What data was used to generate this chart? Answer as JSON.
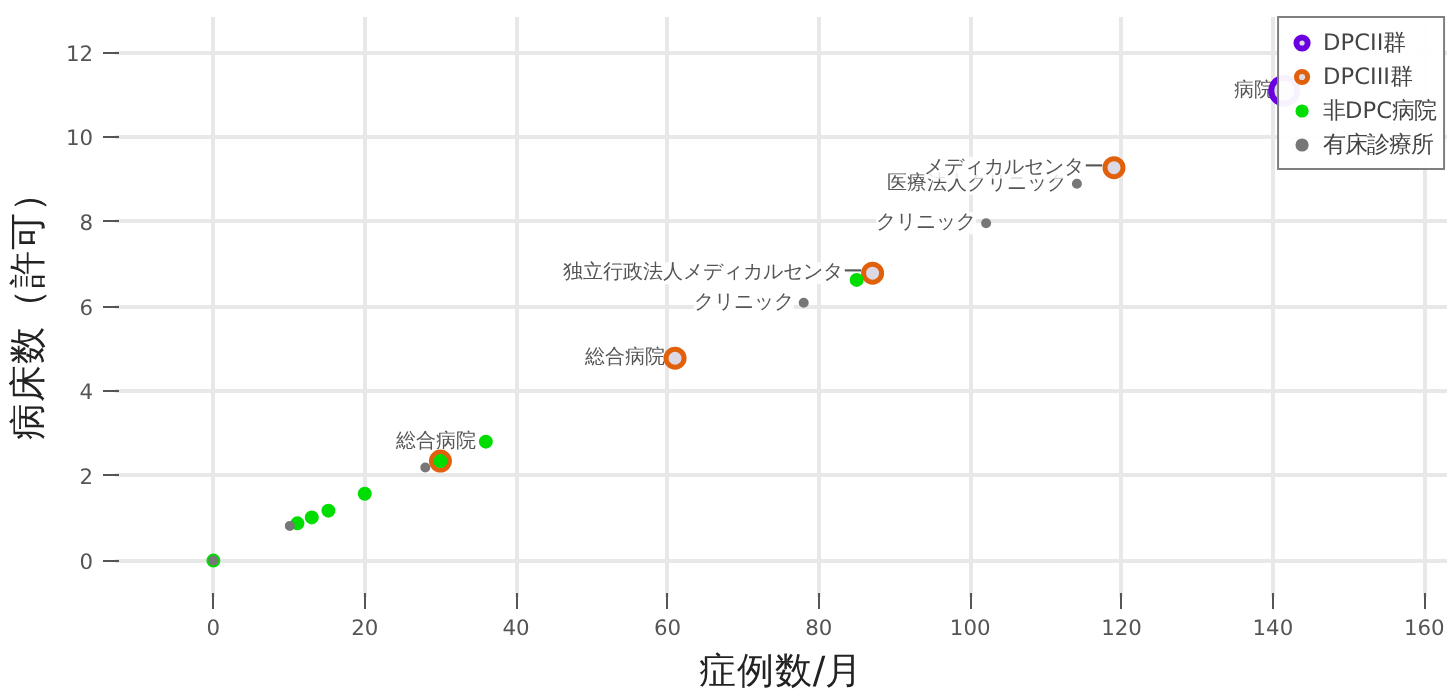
{
  "chart_data": {
    "type": "scatter",
    "xlabel": "症例数/月",
    "ylabel": "病床数（許可）",
    "xlim": [
      -13,
      163
    ],
    "ylim": [
      -0.86,
      12.84
    ],
    "xticks": [
      0,
      20,
      40,
      60,
      80,
      100,
      120,
      140,
      160
    ],
    "yticks": [
      0,
      2,
      4,
      6,
      8,
      10,
      12
    ],
    "grid": true,
    "legend": "top right",
    "marker": "circle",
    "series": [
      {
        "name": "DPCII群",
        "color": "#6a00e0",
        "x": [
          141.5
        ],
        "values": [
          11.1
        ]
      },
      {
        "name": "DPCIII群",
        "color": "#e0600c",
        "x": [
          30.0,
          61.0,
          87.1,
          119.0
        ],
        "values": [
          2.35,
          4.78,
          6.79,
          9.28
        ]
      },
      {
        "name": "非DPC病院",
        "color": "#00dd00",
        "x": [
          0,
          11.1,
          13.0,
          15.2,
          20.0,
          30.0,
          36.0,
          85.0
        ],
        "values": [
          0,
          0.88,
          1.02,
          1.18,
          1.58,
          2.35,
          2.81,
          6.63
        ]
      },
      {
        "name": "有床診療所",
        "color": "#777777",
        "x": [
          0,
          10.1,
          28.0,
          78.0,
          102.1,
          114.1
        ],
        "values": [
          0,
          0.82,
          2.2,
          6.09,
          7.97,
          8.9
        ]
      }
    ],
    "annotations": [
      {
        "text": "総合病院",
        "x": 36.0,
        "y": 2.81
      },
      {
        "text": "総合病院",
        "x": 61.0,
        "y": 4.78
      },
      {
        "text": "クリニック",
        "x": 78.0,
        "y": 6.09
      },
      {
        "text": "独立行政法人メディカルセンター",
        "x": 87.1,
        "y": 6.79
      },
      {
        "text": "クリニック",
        "x": 102.1,
        "y": 7.97
      },
      {
        "text": "医療法人クリニック",
        "x": 114.1,
        "y": 8.9
      },
      {
        "text": "メディカルセンター",
        "x": 119.0,
        "y": 9.28
      },
      {
        "text": "病院",
        "x": 141.5,
        "y": 11.1
      }
    ]
  }
}
